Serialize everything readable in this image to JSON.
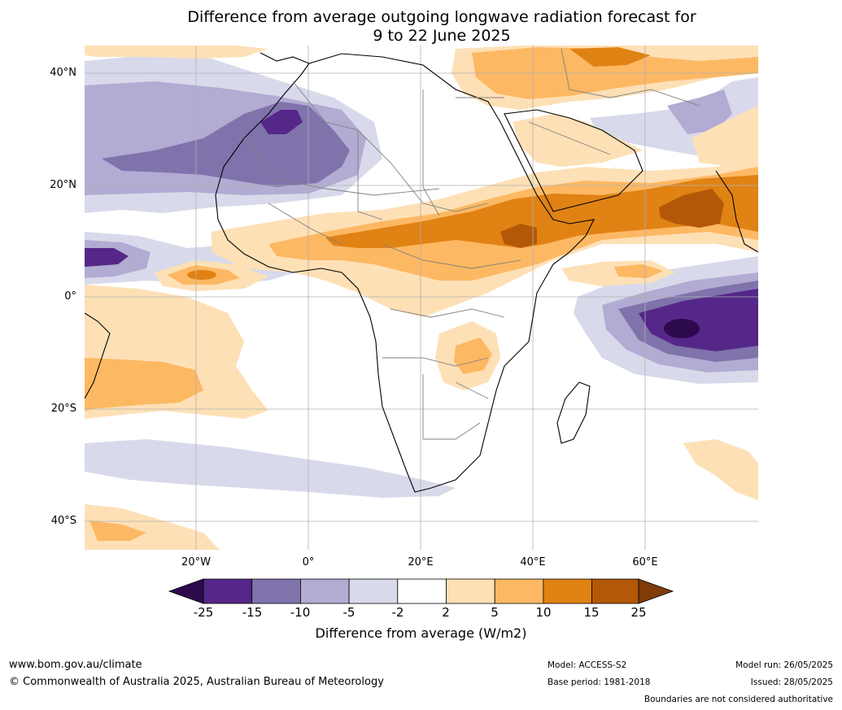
{
  "title_line1": "Difference from average outgoing longwave radiation forecast for",
  "title_line2": "9 to 22 June 2025",
  "map": {
    "lat_labels": [
      "40°N",
      "20°N",
      "0°",
      "20°S",
      "40°S"
    ],
    "lon_labels": [
      "20°W",
      "0°",
      "20°E",
      "40°E",
      "60°E"
    ],
    "colors": {
      "lt_-25": "#2d0a4e",
      "-25_-15": "#542788",
      "-15_-10": "#8073ac",
      "-10_-5": "#b2abd2",
      "-5_-2": "#d8daeb",
      "-2_2": "#ffffff",
      "2_5": "#fee0b6",
      "5_10": "#fdb863",
      "10_15": "#e08214",
      "15_25": "#b35806",
      "gt_25": "#7f3b08"
    }
  },
  "colorbar": {
    "ticks": [
      "-25",
      "-15",
      "-10",
      "-5",
      "-2",
      "2",
      "5",
      "10",
      "15",
      "25"
    ],
    "colors": [
      "#542788",
      "#8073ac",
      "#b2abd2",
      "#d8daeb",
      "#ffffff",
      "#fee0b6",
      "#fdb863",
      "#e08214",
      "#b35806"
    ],
    "under_color": "#2d0a4e",
    "over_color": "#7f3b08",
    "label": "Difference from average (W/m2)"
  },
  "footer": {
    "website": "www.bom.gov.au/climate",
    "copyright": "© Commonwealth of Australia 2025, Australian Bureau of Meteorology",
    "model": "Model: ACCESS-S2",
    "base_period": "Base period: 1981-2018",
    "model_run": "Model run: 26/05/2025",
    "issued": "Issued: 28/05/2025",
    "disclaimer": "Boundaries are not considered authoritative"
  }
}
